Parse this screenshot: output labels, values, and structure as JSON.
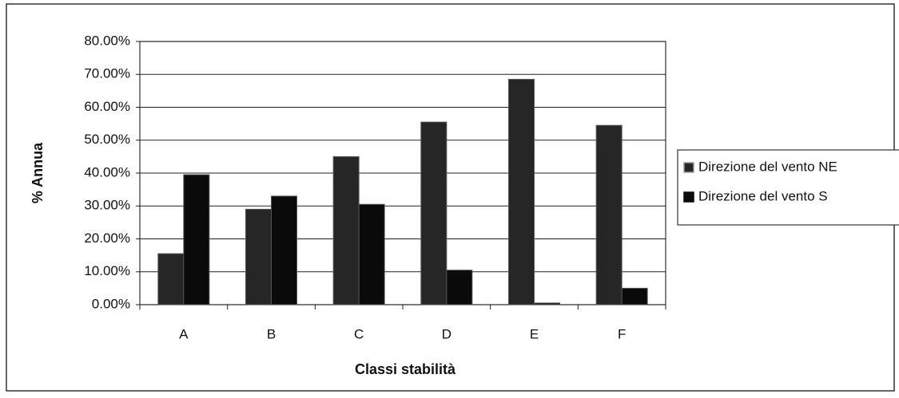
{
  "chart_data": {
    "type": "bar",
    "y_label": "% Annua",
    "x_label": "Classi stabilità",
    "categories": [
      "A",
      "B",
      "C",
      "D",
      "E",
      "F"
    ],
    "series": [
      {
        "name": "Direzione del vento NE",
        "color": "#262626",
        "values": [
          15.5,
          29,
          45,
          55.5,
          68.5,
          54.5
        ]
      },
      {
        "name": "Direzione del vento S",
        "color": "#0a0a0a",
        "values": [
          39.5,
          33,
          30.5,
          10.5,
          0.5,
          5
        ]
      }
    ],
    "ylim": [
      0,
      80
    ],
    "yticks": [
      {
        "value": 0,
        "label": "0.00%"
      },
      {
        "value": 10,
        "label": "10.00%"
      },
      {
        "value": 20,
        "label": "20.00%"
      },
      {
        "value": 30,
        "label": "30.00%"
      },
      {
        "value": 40,
        "label": "40.00%"
      },
      {
        "value": 50,
        "label": "50.00%"
      },
      {
        "value": 60,
        "label": "60.00%"
      },
      {
        "value": 70,
        "label": "70.00%"
      },
      {
        "value": 80,
        "label": "80.00%"
      }
    ],
    "grid": true,
    "legend": "right"
  }
}
